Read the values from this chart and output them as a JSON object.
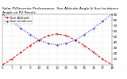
{
  "title": "Solar PV/Inverter Performance  Sun Altitude Angle & Sun Incidence Angle on PV Panels",
  "legend_labels": [
    "Sun Altitude",
    "Sun Incidence"
  ],
  "x_values": [
    6,
    7,
    8,
    9,
    10,
    11,
    12,
    13,
    14,
    15,
    16,
    17,
    18
  ],
  "sun_altitude": [
    0,
    10,
    22,
    34,
    44,
    52,
    55,
    52,
    44,
    34,
    22,
    10,
    0
  ],
  "sun_incidence": [
    90,
    78,
    65,
    54,
    44,
    38,
    35,
    38,
    44,
    54,
    65,
    78,
    90
  ],
  "altitude_color": "#dd0000",
  "incidence_color": "#0000dd",
  "bg_color": "#ffffff",
  "plot_bg": "#ffffff",
  "grid_color": "#aaaaaa",
  "text_color": "#000000",
  "ylim": [
    0,
    90
  ],
  "xlim": [
    6,
    18
  ],
  "yticks": [
    10,
    20,
    30,
    40,
    50,
    60,
    70,
    80,
    90
  ],
  "xticks": [
    6,
    7,
    8,
    9,
    10,
    11,
    12,
    13,
    14,
    15,
    16,
    17,
    18
  ],
  "xlabel_fontsize": 3.0,
  "ylabel_fontsize": 3.0,
  "title_fontsize": 3.2,
  "legend_fontsize": 2.8
}
